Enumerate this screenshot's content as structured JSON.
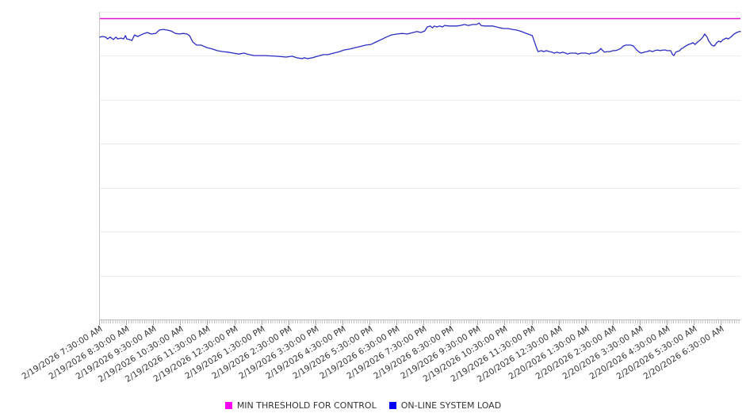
{
  "chart_data": {
    "type": "line",
    "title": "",
    "xlabel": "",
    "ylabel": "",
    "legend_position": "bottom",
    "grid": "horizontal-only",
    "y_axis": {
      "tick_labels_visible": false,
      "gridline_intervals": 7,
      "range_normalized": [
        0,
        1
      ]
    },
    "x_axis": {
      "start": "2/19/2026 7:30:00 AM",
      "end_approx": "2/20/2026 7:10:00 AM",
      "span_hours": 23.7,
      "major_tick_interval": "1 hour",
      "minor_ticks_per_hour": 12
    },
    "x_tick_labels": [
      "2/19/2026 7:30:00 AM",
      "2/19/2026 8:30:00 AM",
      "2/19/2026 9:30:00 AM",
      "2/19/2026 10:30:00 AM",
      "2/19/2026 11:30:00 AM",
      "2/19/2026 12:30:00 PM",
      "2/19/2026 1:30:00 PM",
      "2/19/2026 2:30:00 PM",
      "2/19/2026 3:30:00 PM",
      "2/19/2026 4:30:00 PM",
      "2/19/2026 5:30:00 PM",
      "2/19/2026 6:30:00 PM",
      "2/19/2026 7:30:00 PM",
      "2/19/2026 8:30:00 PM",
      "2/19/2026 9:30:00 PM",
      "2/19/2026 10:30:00 PM",
      "2/19/2026 11:30:00 PM",
      "2/20/2026 12:30:00 AM",
      "2/20/2026 1:30:00 AM",
      "2/20/2026 2:30:00 AM",
      "2/20/2026 3:30:00 AM",
      "2/20/2026 4:30:00 AM",
      "2/20/2026 5:30:00 AM",
      "2/20/2026 6:30:00 AM"
    ],
    "series": [
      {
        "name": "MIN THRESHOLD FOR CONTROL",
        "type": "threshold-horizontal-line",
        "line_color": "#e213cd",
        "legend_color": "#ff00ff",
        "value_normalized": 0.978
      },
      {
        "name": "ON-LINE SYSTEM LOAD",
        "type": "line",
        "line_color": "#2b2bc4",
        "legend_color": "#0000ff",
        "points_normalized": [
          [
            0.0,
            0.918
          ],
          [
            0.004,
            0.92
          ],
          [
            0.009,
            0.918
          ],
          [
            0.012,
            0.912
          ],
          [
            0.016,
            0.918
          ],
          [
            0.021,
            0.91
          ],
          [
            0.025,
            0.918
          ],
          [
            0.028,
            0.912
          ],
          [
            0.033,
            0.915
          ],
          [
            0.037,
            0.912
          ],
          [
            0.04,
            0.923
          ],
          [
            0.042,
            0.912
          ],
          [
            0.046,
            0.91
          ],
          [
            0.05,
            0.907
          ],
          [
            0.054,
            0.925
          ],
          [
            0.059,
            0.92
          ],
          [
            0.064,
            0.925
          ],
          [
            0.069,
            0.93
          ],
          [
            0.074,
            0.933
          ],
          [
            0.08,
            0.928
          ],
          [
            0.087,
            0.93
          ],
          [
            0.093,
            0.941
          ],
          [
            0.099,
            0.943
          ],
          [
            0.105,
            0.941
          ],
          [
            0.111,
            0.938
          ],
          [
            0.118,
            0.93
          ],
          [
            0.124,
            0.928
          ],
          [
            0.13,
            0.93
          ],
          [
            0.136,
            0.928
          ],
          [
            0.14,
            0.923
          ],
          [
            0.145,
            0.902
          ],
          [
            0.151,
            0.892
          ],
          [
            0.158,
            0.892
          ],
          [
            0.167,
            0.884
          ],
          [
            0.176,
            0.879
          ],
          [
            0.183,
            0.874
          ],
          [
            0.192,
            0.871
          ],
          [
            0.2,
            0.869
          ],
          [
            0.208,
            0.866
          ],
          [
            0.217,
            0.863
          ],
          [
            0.225,
            0.866
          ],
          [
            0.233,
            0.861
          ],
          [
            0.241,
            0.858
          ],
          [
            0.257,
            0.858
          ],
          [
            0.275,
            0.856
          ],
          [
            0.291,
            0.853
          ],
          [
            0.3,
            0.856
          ],
          [
            0.307,
            0.851
          ],
          [
            0.316,
            0.848
          ],
          [
            0.319,
            0.851
          ],
          [
            0.324,
            0.848
          ],
          [
            0.332,
            0.851
          ],
          [
            0.34,
            0.856
          ],
          [
            0.349,
            0.861
          ],
          [
            0.356,
            0.861
          ],
          [
            0.365,
            0.866
          ],
          [
            0.374,
            0.871
          ],
          [
            0.381,
            0.876
          ],
          [
            0.39,
            0.879
          ],
          [
            0.399,
            0.884
          ],
          [
            0.406,
            0.887
          ],
          [
            0.415,
            0.892
          ],
          [
            0.423,
            0.894
          ],
          [
            0.431,
            0.902
          ],
          [
            0.439,
            0.91
          ],
          [
            0.447,
            0.918
          ],
          [
            0.455,
            0.925
          ],
          [
            0.464,
            0.928
          ],
          [
            0.472,
            0.93
          ],
          [
            0.48,
            0.928
          ],
          [
            0.489,
            0.933
          ],
          [
            0.495,
            0.936
          ],
          [
            0.501,
            0.933
          ],
          [
            0.507,
            0.938
          ],
          [
            0.511,
            0.951
          ],
          [
            0.516,
            0.954
          ],
          [
            0.519,
            0.948
          ],
          [
            0.522,
            0.954
          ],
          [
            0.526,
            0.951
          ],
          [
            0.53,
            0.954
          ],
          [
            0.535,
            0.951
          ],
          [
            0.538,
            0.956
          ],
          [
            0.545,
            0.954
          ],
          [
            0.551,
            0.954
          ],
          [
            0.557,
            0.954
          ],
          [
            0.563,
            0.956
          ],
          [
            0.569,
            0.959
          ],
          [
            0.575,
            0.956
          ],
          [
            0.582,
            0.959
          ],
          [
            0.588,
            0.959
          ],
          [
            0.592,
            0.964
          ],
          [
            0.595,
            0.956
          ],
          [
            0.6,
            0.954
          ],
          [
            0.606,
            0.954
          ],
          [
            0.613,
            0.954
          ],
          [
            0.619,
            0.951
          ],
          [
            0.625,
            0.948
          ],
          [
            0.631,
            0.946
          ],
          [
            0.637,
            0.946
          ],
          [
            0.644,
            0.943
          ],
          [
            0.65,
            0.941
          ],
          [
            0.656,
            0.938
          ],
          [
            0.662,
            0.933
          ],
          [
            0.668,
            0.928
          ],
          [
            0.675,
            0.923
          ],
          [
            0.678,
            0.905
          ],
          [
            0.682,
            0.881
          ],
          [
            0.684,
            0.871
          ],
          [
            0.689,
            0.874
          ],
          [
            0.693,
            0.871
          ],
          [
            0.697,
            0.874
          ],
          [
            0.702,
            0.871
          ],
          [
            0.706,
            0.869
          ],
          [
            0.709,
            0.866
          ],
          [
            0.714,
            0.869
          ],
          [
            0.718,
            0.866
          ],
          [
            0.722,
            0.869
          ],
          [
            0.727,
            0.866
          ],
          [
            0.73,
            0.863
          ],
          [
            0.734,
            0.866
          ],
          [
            0.739,
            0.866
          ],
          [
            0.743,
            0.866
          ],
          [
            0.746,
            0.863
          ],
          [
            0.751,
            0.866
          ],
          [
            0.755,
            0.866
          ],
          [
            0.759,
            0.866
          ],
          [
            0.764,
            0.863
          ],
          [
            0.767,
            0.866
          ],
          [
            0.771,
            0.866
          ],
          [
            0.776,
            0.869
          ],
          [
            0.78,
            0.876
          ],
          [
            0.782,
            0.881
          ],
          [
            0.785,
            0.874
          ],
          [
            0.788,
            0.869
          ],
          [
            0.792,
            0.871
          ],
          [
            0.796,
            0.871
          ],
          [
            0.801,
            0.874
          ],
          [
            0.804,
            0.874
          ],
          [
            0.808,
            0.876
          ],
          [
            0.813,
            0.881
          ],
          [
            0.817,
            0.889
          ],
          [
            0.821,
            0.892
          ],
          [
            0.825,
            0.892
          ],
          [
            0.829,
            0.892
          ],
          [
            0.833,
            0.889
          ],
          [
            0.838,
            0.876
          ],
          [
            0.842,
            0.869
          ],
          [
            0.845,
            0.866
          ],
          [
            0.85,
            0.869
          ],
          [
            0.854,
            0.871
          ],
          [
            0.858,
            0.874
          ],
          [
            0.863,
            0.871
          ],
          [
            0.866,
            0.874
          ],
          [
            0.87,
            0.876
          ],
          [
            0.875,
            0.874
          ],
          [
            0.879,
            0.876
          ],
          [
            0.883,
            0.876
          ],
          [
            0.885,
            0.874
          ],
          [
            0.889,
            0.874
          ],
          [
            0.891,
            0.874
          ],
          [
            0.894,
            0.861
          ],
          [
            0.896,
            0.858
          ],
          [
            0.899,
            0.869
          ],
          [
            0.901,
            0.871
          ],
          [
            0.905,
            0.874
          ],
          [
            0.907,
            0.879
          ],
          [
            0.911,
            0.884
          ],
          [
            0.913,
            0.887
          ],
          [
            0.917,
            0.892
          ],
          [
            0.919,
            0.894
          ],
          [
            0.923,
            0.897
          ],
          [
            0.926,
            0.9
          ],
          [
            0.929,
            0.894
          ],
          [
            0.933,
            0.902
          ],
          [
            0.938,
            0.91
          ],
          [
            0.942,
            0.92
          ],
          [
            0.944,
            0.928
          ],
          [
            0.948,
            0.918
          ],
          [
            0.95,
            0.907
          ],
          [
            0.955,
            0.892
          ],
          [
            0.959,
            0.889
          ],
          [
            0.963,
            0.9
          ],
          [
            0.966,
            0.905
          ],
          [
            0.969,
            0.902
          ],
          [
            0.973,
            0.91
          ],
          [
            0.978,
            0.915
          ],
          [
            0.981,
            0.912
          ],
          [
            0.986,
            0.92
          ],
          [
            0.99,
            0.928
          ],
          [
            0.994,
            0.933
          ],
          [
            0.998,
            0.936
          ],
          [
            1.0,
            0.936
          ]
        ]
      }
    ]
  },
  "legend": {
    "items": [
      {
        "label": "MIN THRESHOLD FOR CONTROL",
        "color": "#ff00ff"
      },
      {
        "label": "ON-LINE SYSTEM LOAD",
        "color": "#0000ff"
      }
    ]
  },
  "colors": {
    "background": "#ffffff",
    "gridline": "#ebebeb",
    "axis_line": "#c9c9c9",
    "minor_tick": "#c2c2c2",
    "label_text": "#333333"
  }
}
